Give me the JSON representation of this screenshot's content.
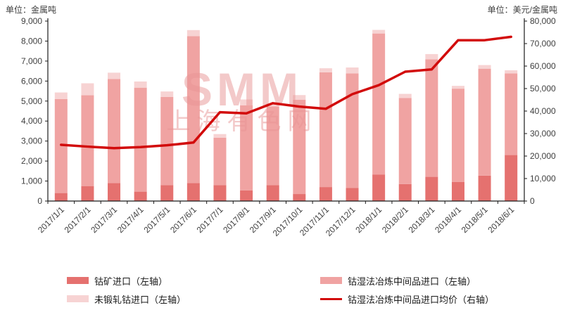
{
  "watermark": {
    "line1": "SMM",
    "line2": "上海有色网"
  },
  "chart_data": {
    "type": "bar",
    "subtype": "stacked-bar-with-line-overlay",
    "categories": [
      "2017/1/1",
      "2017/2/1",
      "2017/3/1",
      "2017/4/1",
      "2017/5/1",
      "2017/6/1",
      "2017/7/1",
      "2017/8/1",
      "2017/9/1",
      "2017/10/1",
      "2017/11/1",
      "2017/12/1",
      "2018/1/1",
      "2018/2/1",
      "2018/3/1",
      "2018/4/1",
      "2018/5/1",
      "2018/6/1"
    ],
    "series": [
      {
        "name": "钴矿进口（左轴）",
        "type": "bar",
        "stack": "imports",
        "axis": "left",
        "color": "#e5716f",
        "values": [
          400,
          750,
          900,
          470,
          800,
          900,
          800,
          530,
          800,
          350,
          700,
          650,
          1330,
          850,
          1210,
          950,
          1270,
          2300
        ]
      },
      {
        "name": "钴湿法冶炼中间品进口（左轴）",
        "type": "bar",
        "stack": "imports",
        "axis": "left",
        "color": "#f0a3a2",
        "values": [
          4700,
          4540,
          5200,
          5200,
          4410,
          7350,
          2370,
          4260,
          3930,
          4720,
          5740,
          5730,
          7050,
          4300,
          5880,
          4670,
          5350,
          4080
        ]
      },
      {
        "name": "未锻轧钴进口（左轴）",
        "type": "bar",
        "stack": "imports",
        "axis": "left",
        "color": "#f7d3d3",
        "values": [
          330,
          600,
          320,
          310,
          270,
          300,
          180,
          290,
          150,
          230,
          200,
          300,
          180,
          210,
          260,
          140,
          180,
          160
        ]
      },
      {
        "name": "钴湿法冶炼中间品进口均价（右轴）",
        "type": "line",
        "axis": "right",
        "color": "#d20b0b",
        "values": [
          25000,
          24200,
          23500,
          24000,
          24800,
          26000,
          39500,
          39000,
          43500,
          42000,
          41000,
          47500,
          51500,
          57500,
          58500,
          71500,
          71500,
          73000
        ]
      }
    ],
    "left_axis": {
      "unit": "单位：金属吨",
      "min": 0,
      "max": 9000,
      "step": 1000,
      "tick_labels": [
        "0",
        "1,000",
        "2,000",
        "3,000",
        "4,000",
        "5,000",
        "6,000",
        "7,000",
        "8,000",
        "9,000"
      ]
    },
    "right_axis": {
      "unit": "单位：美元/金属吨",
      "min": 0,
      "max": 80000,
      "step": 10000,
      "tick_labels": [
        "0",
        "10,000",
        "20,000",
        "30,000",
        "40,000",
        "50,000",
        "60,000",
        "70,000",
        "80,000"
      ]
    },
    "grid": false,
    "legend_position": "bottom"
  }
}
